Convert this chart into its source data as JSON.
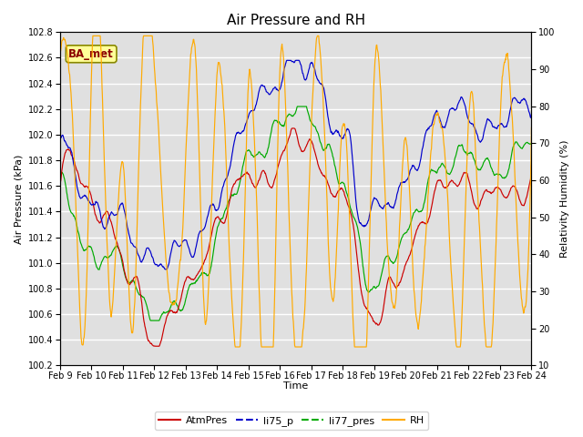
{
  "title": "Air Pressure and RH",
  "xlabel": "Time",
  "ylabel_left": "Air Pressure (kPa)",
  "ylabel_right": "Relativity Humidity (%)",
  "ylim_left": [
    100.2,
    102.8
  ],
  "ylim_right": [
    10,
    100
  ],
  "yticks_left": [
    100.2,
    100.4,
    100.6,
    100.8,
    101.0,
    101.2,
    101.4,
    101.6,
    101.8,
    102.0,
    102.2,
    102.4,
    102.6,
    102.8
  ],
  "yticks_right": [
    10,
    20,
    30,
    40,
    50,
    60,
    70,
    80,
    90,
    100
  ],
  "xtick_labels": [
    "Feb 9",
    "Feb 10",
    "Feb 11",
    "Feb 12",
    "Feb 13",
    "Feb 14",
    "Feb 15",
    "Feb 16",
    "Feb 17",
    "Feb 18",
    "Feb 19",
    "Feb 20",
    "Feb 21",
    "Feb 22",
    "Feb 23",
    "Feb 24"
  ],
  "colors": {
    "AtmPres": "#cc0000",
    "li75_p": "#0000cc",
    "li77_pres": "#00aa00",
    "RH": "#ffaa00"
  },
  "annotation_text": "BA_met",
  "annotation_color": "#8B0000",
  "annotation_bg": "#ffff99",
  "plot_bg": "#e0e0e0",
  "fig_bg": "#ffffff",
  "grid_color": "#ffffff",
  "title_fontsize": 11,
  "label_fontsize": 8,
  "tick_fontsize": 7
}
